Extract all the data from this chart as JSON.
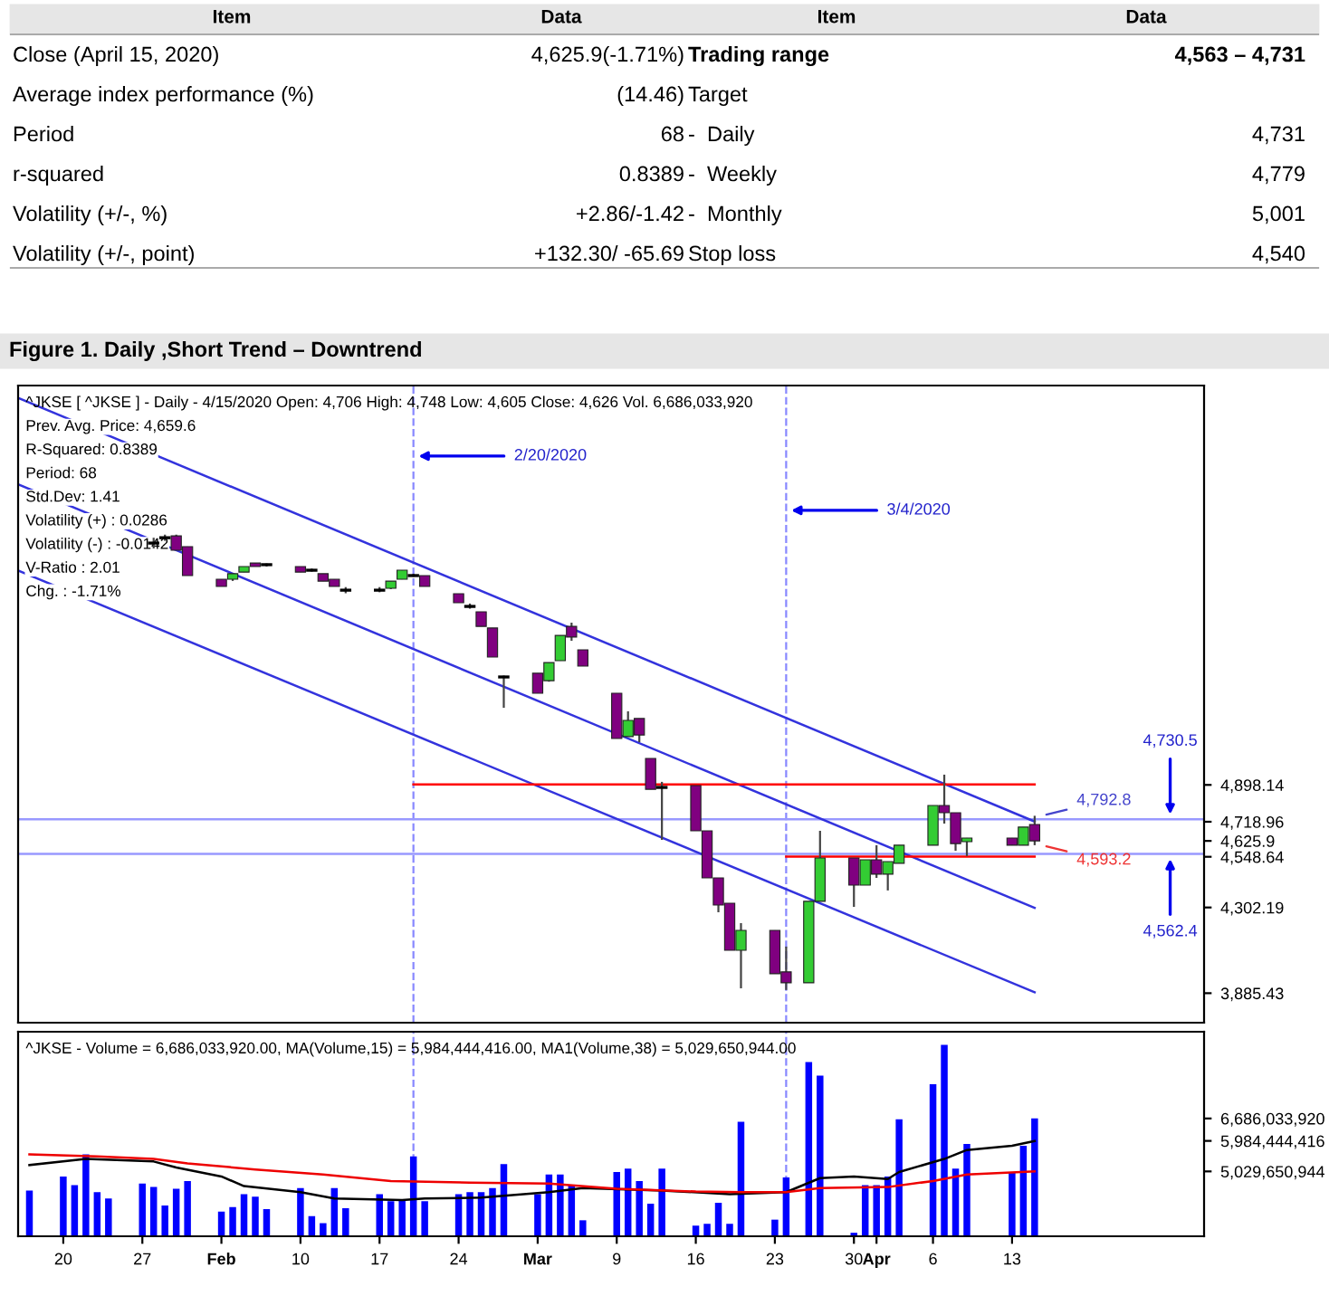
{
  "chart_data": [
    {
      "type": "other",
      "categories": [
        "Item",
        "Data",
        "Item",
        "Data"
      ],
      "annotations": [
        "Close (April 15, 2020)",
        "4,625.9(-1.71%)",
        "Trading range",
        "4,563 – 4,731",
        "Average index performance (%)",
        "(14.46)",
        "Target",
        null,
        "Period",
        "68",
        "-  Daily",
        "4,731",
        "r-squared",
        "0.8389",
        "-  Weekly",
        "4,779",
        "Volatility (+/-, %)",
        "+2.86/-1.42",
        "-  Monthly",
        "5,001",
        "Volatility (+/-, point)",
        "+132.30/ -65.69",
        "Stop loss",
        "4,540"
      ]
    },
    {
      "type": "candlestick",
      "title": "Figure 1. Daily ,Short Trend – Downtrend",
      "subtitle": "^JKSE [ ^JKSE ] - Daily - 4/15/2020 Open: 4,706 High: 4,748 Low: 4,605 Close: 4,626 Vol. 6,686,033,920",
      "x": [
        "2020-01-28",
        "2020-01-29",
        "2020-01-30",
        "2020-01-31",
        "2020-02-03",
        "2020-02-04",
        "2020-02-05",
        "2020-02-06",
        "2020-02-07",
        "2020-02-10",
        "2020-02-11",
        "2020-02-12",
        "2020-02-13",
        "2020-02-14",
        "2020-02-17",
        "2020-02-18",
        "2020-02-19",
        "2020-02-20",
        "2020-02-21",
        "2020-02-24",
        "2020-02-25",
        "2020-02-26",
        "2020-02-27",
        "2020-02-28",
        "2020-03-02",
        "2020-03-03",
        "2020-03-04",
        "2020-03-05",
        "2020-03-06",
        "2020-03-09",
        "2020-03-10",
        "2020-03-11",
        "2020-03-12",
        "2020-03-13",
        "2020-03-16",
        "2020-03-17",
        "2020-03-18",
        "2020-03-19",
        "2020-03-20",
        "2020-03-23",
        "2020-03-24",
        "2020-03-26",
        "2020-03-27",
        "2020-03-30",
        "2020-03-31",
        "2020-04-01",
        "2020-04-02",
        "2020-04-03",
        "2020-04-06",
        "2020-04-07",
        "2020-04-08",
        "2020-04-09",
        "2020-04-13",
        "2020-04-14",
        "2020-04-15"
      ],
      "ohlc": [
        [
          6074,
          6100,
          6048,
          6074
        ],
        [
          6100,
          6115,
          6085,
          6100
        ],
        [
          6109,
          6115,
          6039,
          6039
        ],
        [
          6057,
          6057,
          5916,
          5916
        ],
        [
          5898,
          5898,
          5863,
          5863
        ],
        [
          5898,
          5925,
          5890,
          5925
        ],
        [
          5933,
          5960,
          5933,
          5960
        ],
        [
          5977,
          5977,
          5960,
          5960
        ],
        [
          5969,
          5975,
          5960,
          5969
        ],
        [
          5960,
          5960,
          5933,
          5933
        ],
        [
          5942,
          5950,
          5935,
          5942
        ],
        [
          5925,
          5925,
          5889,
          5889
        ],
        [
          5898,
          5898,
          5863,
          5863
        ],
        [
          5845,
          5860,
          5830,
          5845
        ],
        [
          5845,
          5860,
          5835,
          5845
        ],
        [
          5854,
          5889,
          5850,
          5889
        ],
        [
          5898,
          5942,
          5898,
          5942
        ],
        [
          5916,
          5925,
          5910,
          5916
        ],
        [
          5916,
          5916,
          5863,
          5863
        ],
        [
          5828,
          5828,
          5784,
          5784
        ],
        [
          5766,
          5780,
          5755,
          5766
        ],
        [
          5740,
          5740,
          5669,
          5669
        ],
        [
          5661,
          5661,
          5520,
          5520
        ],
        [
          5423,
          5430,
          5273,
          5423
        ],
        [
          5441,
          5441,
          5344,
          5344
        ],
        [
          5405,
          5493,
          5400,
          5493
        ],
        [
          5502,
          5625,
          5502,
          5625
        ],
        [
          5669,
          5687,
          5599,
          5617
        ],
        [
          5555,
          5555,
          5476,
          5476
        ],
        [
          5344,
          5344,
          5124,
          5124
        ],
        [
          5133,
          5256,
          5133,
          5212
        ],
        [
          5221,
          5221,
          5106,
          5141
        ],
        [
          5027,
          5027,
          4877,
          4877
        ],
        [
          4886,
          4913,
          4631,
          4886
        ],
        [
          4895,
          4895,
          4675,
          4675
        ],
        [
          4675,
          4675,
          4446,
          4446
        ],
        [
          4446,
          4446,
          4279,
          4314
        ],
        [
          4323,
          4323,
          4094,
          4094
        ],
        [
          4094,
          4226,
          3909,
          4191
        ],
        [
          4191,
          4191,
          3980,
          3980
        ],
        [
          3989,
          4112,
          3901,
          3936
        ],
        [
          3936,
          4332,
          3936,
          4332
        ],
        [
          4332,
          4675,
          4332,
          4543
        ],
        [
          4543,
          4543,
          4305,
          4411
        ],
        [
          4411,
          4534,
          4411,
          4534
        ],
        [
          4534,
          4605,
          4446,
          4464
        ],
        [
          4464,
          4525,
          4385,
          4525
        ],
        [
          4517,
          4605,
          4517,
          4605
        ],
        [
          4605,
          4798,
          4605,
          4798
        ],
        [
          4798,
          4948,
          4710,
          4763
        ],
        [
          4763,
          4763,
          4578,
          4613
        ],
        [
          4622,
          4640,
          4552,
          4640
        ],
        [
          4640,
          4640,
          4605,
          4605
        ],
        [
          4605,
          4693,
          4605,
          4693
        ],
        [
          4706,
          4748,
          4605,
          4626
        ]
      ],
      "colors": [
        "#000000",
        "#000000",
        "#800080",
        "#800080",
        "#800080",
        "#33cc33",
        "#33cc33",
        "#800080",
        "#000000",
        "#800080",
        "#000000",
        "#800080",
        "#800080",
        "#000000",
        "#000000",
        "#33cc33",
        "#33cc33",
        "#000000",
        "#800080",
        "#800080",
        "#000000",
        "#800080",
        "#800080",
        "#000000",
        "#800080",
        "#33cc33",
        "#33cc33",
        "#800080",
        "#800080",
        "#800080",
        "#33cc33",
        "#800080",
        "#800080",
        "#000000",
        "#800080",
        "#800080",
        "#800080",
        "#800080",
        "#33cc33",
        "#800080",
        "#800080",
        "#33cc33",
        "#33cc33",
        "#800080",
        "#33cc33",
        "#800080",
        "#33cc33",
        "#33cc33",
        "#33cc33",
        "#800080",
        "#800080",
        "#33cc33",
        "#800080",
        "#33cc33",
        "#800080"
      ],
      "series": [
        {
          "type": "line",
          "x": [
            "2020-01-16",
            "2020-04-15"
          ],
          "values": [
            6780,
            4720
          ],
          "color": "#3333dd"
        },
        {
          "type": "line",
          "x": [
            "2020-01-16",
            "2020-04-15"
          ],
          "values": [
            6360,
            4300
          ],
          "color": "#3333dd"
        },
        {
          "type": "line",
          "x": [
            "2020-01-16",
            "2020-04-15"
          ],
          "values": [
            5940,
            3890
          ],
          "color": "#3333dd"
        },
        {
          "type": "line",
          "x": [
            "2020-02-20",
            "2020-04-15"
          ],
          "values": [
            4900,
            4900
          ],
          "color": "#ff0000"
        },
        {
          "type": "line",
          "x": [
            "2020-03-24",
            "2020-04-15"
          ],
          "values": [
            4550,
            4550
          ],
          "color": "#ff0000"
        }
      ],
      "xlim": [
        "2020-01-16",
        "2020-04-30"
      ],
      "ylim": [
        3742,
        6840
      ],
      "yticks": [
        {
          "value": 4898.14,
          "label": "4,898.14"
        },
        {
          "value": 4718.96,
          "label": "4,718.96"
        },
        {
          "value": 4625.9,
          "label": "4,625.9"
        },
        {
          "value": 4548.64,
          "label": "4,548.64"
        },
        {
          "value": 4302.19,
          "label": "4,302.19"
        },
        {
          "value": 3885.43,
          "label": "3,885.43"
        }
      ],
      "tick_labels": "y",
      "ref_lines": [
        {
          "axis": "x",
          "value": "2020-02-20",
          "color": "#8888ff",
          "line_style": "dashed"
        },
        {
          "axis": "x",
          "value": "2020-03-24",
          "color": "#8888ff",
          "line_style": "dashed"
        },
        {
          "axis": "y",
          "value": 4730.5,
          "color": "#9999ff",
          "line_style": "solid"
        },
        {
          "axis": "y",
          "value": 4562.4,
          "color": "#9999ff",
          "line_style": "solid"
        }
      ],
      "annotations": [
        "Prev. Avg. Price: 4,659.6",
        "R-Squared: 0.8389",
        "Period: 68",
        "Std.Dev: 1.41",
        "Volatility (+) : 0.0286",
        "Volatility (-) : -0.0142",
        "V-Ratio : 2.01",
        "Chg. : -1.71%",
        {
          "text": "2/20/2020",
          "x": "2020-02-20",
          "y": 6497
        },
        {
          "text": "3/4/2020",
          "x": "2020-03-24",
          "y": 6233
        },
        {
          "text": "4,730.5",
          "x": "2020-04-27",
          "y": 4730.5
        },
        {
          "text": "4,562.4",
          "x": "2020-04-27",
          "y": 4562.4
        },
        "4,792.8",
        "4,593.2"
      ]
    },
    {
      "type": "bar",
      "subtitle": "^JKSE - Volume = 6,686,033,920.00, MA(Volume,15) = 5,984,444,416.00, MA1(Volume,38) = 5,029,650,944.00",
      "x": [
        "2020-01-17",
        "2020-01-20",
        "2020-01-21",
        "2020-01-22",
        "2020-01-23",
        "2020-01-24",
        "2020-01-27",
        "2020-01-28",
        "2020-01-29",
        "2020-01-30",
        "2020-01-31",
        "2020-02-03",
        "2020-02-04",
        "2020-02-05",
        "2020-02-06",
        "2020-02-07",
        "2020-02-10",
        "2020-02-11",
        "2020-02-12",
        "2020-02-13",
        "2020-02-14",
        "2020-02-17",
        "2020-02-18",
        "2020-02-19",
        "2020-02-20",
        "2020-02-21",
        "2020-02-24",
        "2020-02-25",
        "2020-02-26",
        "2020-02-27",
        "2020-02-28",
        "2020-03-02",
        "2020-03-03",
        "2020-03-04",
        "2020-03-05",
        "2020-03-06",
        "2020-03-09",
        "2020-03-10",
        "2020-03-11",
        "2020-03-12",
        "2020-03-13",
        "2020-03-16",
        "2020-03-17",
        "2020-03-18",
        "2020-03-19",
        "2020-03-20",
        "2020-03-23",
        "2020-03-24",
        "2020-03-26",
        "2020-03-27",
        "2020-03-30",
        "2020-03-31",
        "2020-04-01",
        "2020-04-02",
        "2020-04-03",
        "2020-04-06",
        "2020-04-07",
        "2020-04-08",
        "2020-04-09",
        "2020-04-13",
        "2020-04-14",
        "2020-04-15"
      ],
      "series": [
        {
          "type": "bar",
          "color": "#0000ff",
          "values": [
            4430000000,
            4870000000,
            4600000000,
            5560000000,
            4380000000,
            4180000000,
            4650000000,
            4540000000,
            3960000000,
            4490000000,
            4730000000,
            3770000000,
            3910000000,
            4320000000,
            4240000000,
            3850000000,
            4510000000,
            3630000000,
            3410000000,
            4510000000,
            3880000000,
            4320000000,
            4100000000,
            4130000000,
            5500000000,
            4100000000,
            4320000000,
            4380000000,
            4380000000,
            4510000000,
            5260000000,
            4320000000,
            4930000000,
            4930000000,
            4600000000,
            3500000000,
            5010000000,
            5120000000,
            4730000000,
            4020000000,
            5120000000,
            3330000000,
            3390000000,
            4050000000,
            3390000000,
            6580000000,
            3520000000,
            4840000000,
            8450000000,
            8030000000,
            3110000000,
            4600000000,
            4600000000,
            4870000000,
            6660000000,
            7760000000,
            8990000000,
            5120000000,
            5890000000,
            5010000000,
            5830000000,
            6690000000
          ]
        },
        {
          "type": "line",
          "color": "#000000",
          "x": [
            "2020-01-17",
            "2020-01-22",
            "2020-01-28",
            "2020-01-30",
            "2020-02-03",
            "2020-02-05",
            "2020-02-10",
            "2020-02-13",
            "2020-02-19",
            "2020-02-21",
            "2020-02-26",
            "2020-03-03",
            "2020-03-06",
            "2020-03-13",
            "2020-03-19",
            "2020-03-24",
            "2020-03-27",
            "2020-03-30",
            "2020-04-02",
            "2020-04-03",
            "2020-04-07",
            "2020-04-09",
            "2020-04-13",
            "2020-04-15"
          ],
          "values": [
            5230000000,
            5420000000,
            5340000000,
            5150000000,
            4870000000,
            4570000000,
            4380000000,
            4180000000,
            4130000000,
            4180000000,
            4210000000,
            4380000000,
            4510000000,
            4430000000,
            4320000000,
            4380000000,
            4820000000,
            4870000000,
            4790000000,
            5010000000,
            5420000000,
            5700000000,
            5830000000,
            5980000000
          ]
        },
        {
          "type": "line",
          "color": "#ee0000",
          "x": [
            "2020-01-17",
            "2020-01-23",
            "2020-01-28",
            "2020-01-31",
            "2020-02-06",
            "2020-02-12",
            "2020-02-18",
            "2020-02-25",
            "2020-03-03",
            "2020-03-09",
            "2020-03-16",
            "2020-03-20",
            "2020-03-24",
            "2020-03-27",
            "2020-04-02",
            "2020-04-06",
            "2020-04-09",
            "2020-04-15"
          ],
          "values": [
            5560000000,
            5500000000,
            5420000000,
            5280000000,
            5090000000,
            4930000000,
            4730000000,
            4680000000,
            4650000000,
            4490000000,
            4400000000,
            4380000000,
            4380000000,
            4510000000,
            4540000000,
            4730000000,
            4930000000,
            5030000000
          ]
        }
      ],
      "xlim": [
        "2020-01-16",
        "2020-04-30"
      ],
      "ylim": [
        3000000000,
        9400000000
      ],
      "yticks": [
        {
          "value": 6686033920,
          "label": "6,686,033,920"
        },
        {
          "value": 5984444416,
          "label": "5,984,444,416"
        },
        {
          "value": 5029650944,
          "label": "5,029,650,944"
        }
      ],
      "xticks": [
        {
          "value": "2020-01-20",
          "label": "20"
        },
        {
          "value": "2020-01-27",
          "label": "27"
        },
        {
          "value": "2020-02-03",
          "label": "Feb"
        },
        {
          "value": "2020-02-10",
          "label": "10"
        },
        {
          "value": "2020-02-17",
          "label": "17"
        },
        {
          "value": "2020-02-24",
          "label": "24"
        },
        {
          "value": "2020-03-02",
          "label": "Mar"
        },
        {
          "value": "2020-03-09",
          "label": "9"
        },
        {
          "value": "2020-03-16",
          "label": "16"
        },
        {
          "value": "2020-03-23",
          "label": "23"
        },
        {
          "value": "2020-03-30",
          "label": "30"
        },
        {
          "value": "2020-04-01",
          "label": "Apr"
        },
        {
          "value": "2020-04-06",
          "label": "6"
        },
        {
          "value": "2020-04-13",
          "label": "13"
        }
      ],
      "ref_lines": [
        {
          "axis": "x",
          "value": "2020-02-20",
          "color": "#8888ff",
          "line_style": "dashed"
        },
        {
          "axis": "x",
          "value": "2020-03-24",
          "color": "#8888ff",
          "line_style": "dashed"
        }
      ]
    }
  ]
}
